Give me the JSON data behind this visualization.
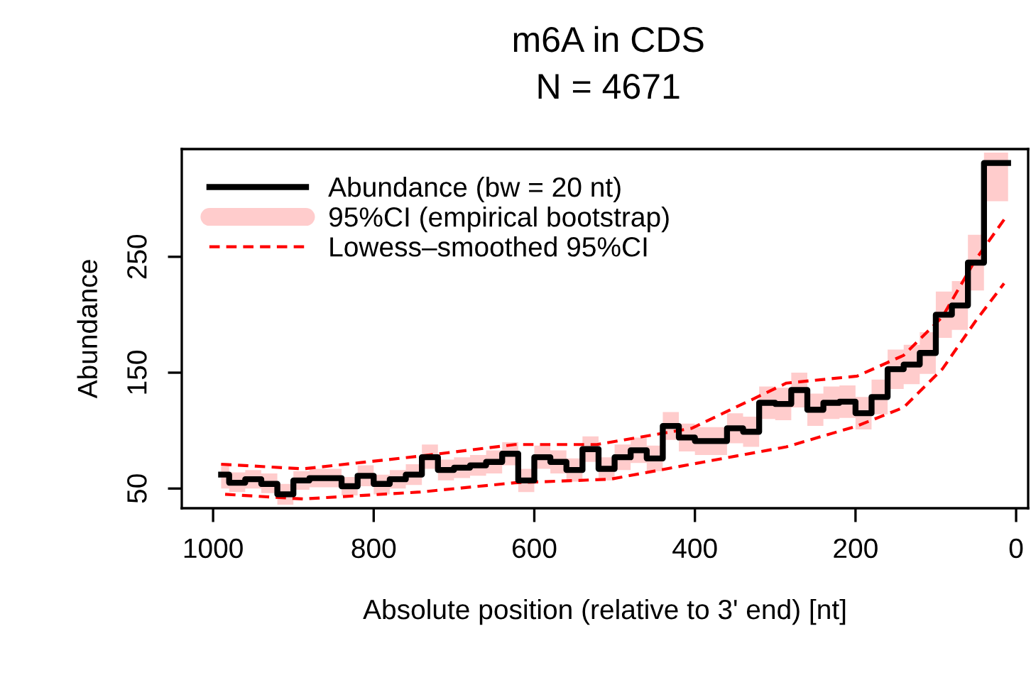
{
  "chart_data": {
    "type": "step",
    "title": "m6A in CDS",
    "subtitle": "N = 4671",
    "xlabel": "Absolute position (relative to 3' end) [nt]",
    "ylabel": "Abundance",
    "xlim": [
      1039,
      -15
    ],
    "xticks": [
      1000,
      800,
      600,
      400,
      200,
      0
    ],
    "ylim": [
      33,
      343
    ],
    "yticks": [
      50,
      150,
      250
    ],
    "grid": false,
    "legend": "top left",
    "annotations": [
      "95%CI (empirical bootstrap)"
    ],
    "series": [
      {
        "name": "Abundance (bw = 20 nt)",
        "color": "#000000",
        "x": [
          990,
          970,
          950,
          930,
          910,
          890,
          870,
          850,
          830,
          810,
          790,
          770,
          750,
          730,
          710,
          690,
          670,
          650,
          630,
          610,
          590,
          570,
          550,
          530,
          510,
          490,
          470,
          450,
          430,
          410,
          390,
          370,
          350,
          330,
          310,
          290,
          270,
          250,
          230,
          210,
          190,
          170,
          150,
          130,
          110,
          90,
          70,
          50,
          30,
          10
        ],
        "values": [
          62,
          55,
          58,
          54,
          45,
          57,
          59,
          59,
          52,
          61,
          54,
          58,
          62,
          77,
          66,
          68,
          70,
          73,
          80,
          57,
          77,
          73,
          66,
          84,
          67,
          77,
          83,
          76,
          104,
          94,
          91,
          91,
          102,
          99,
          124,
          123,
          135,
          118,
          124,
          125,
          115,
          129,
          153,
          157,
          167,
          200,
          208,
          245,
          331,
          331
        ],
        "lower": [
          50,
          47,
          50,
          46,
          36,
          49,
          51,
          51,
          44,
          52,
          45,
          50,
          53,
          67,
          57,
          59,
          61,
          63,
          70,
          47,
          67,
          63,
          56,
          73,
          57,
          66,
          72,
          65,
          92,
          82,
          79,
          79,
          89,
          86,
          110,
          109,
          120,
          104,
          110,
          111,
          101,
          114,
          136,
          140,
          149,
          180,
          187,
          221,
          298,
          298
        ],
        "upper": [
          72,
          64,
          66,
          63,
          54,
          65,
          67,
          67,
          60,
          70,
          62,
          66,
          71,
          88,
          75,
          77,
          79,
          83,
          90,
          67,
          87,
          83,
          76,
          95,
          77,
          88,
          94,
          87,
          116,
          106,
          103,
          103,
          115,
          112,
          138,
          137,
          150,
          132,
          138,
          139,
          129,
          144,
          170,
          174,
          185,
          220,
          229,
          269,
          340,
          340
        ]
      },
      {
        "name": "Lowess–smoothed 95%CI",
        "type": "line",
        "color": "#ff0000",
        "line_style": "dashed",
        "x": [
          990,
          888,
          742,
          624,
          522,
          404,
          286,
          198,
          140,
          92,
          51,
          12
        ],
        "values": [
          71,
          67,
          78,
          88,
          88,
          102,
          141,
          147,
          165,
          198,
          247,
          285
        ]
      },
      {
        "type": "line",
        "color": "#ff0000",
        "line_style": "dashed",
        "x": [
          985,
          888,
          742,
          624,
          506,
          404,
          286,
          198,
          140,
          92,
          51,
          15
        ],
        "values": [
          45,
          41,
          47,
          55,
          58,
          71,
          86,
          104,
          120,
          153,
          194,
          227
        ]
      }
    ]
  }
}
